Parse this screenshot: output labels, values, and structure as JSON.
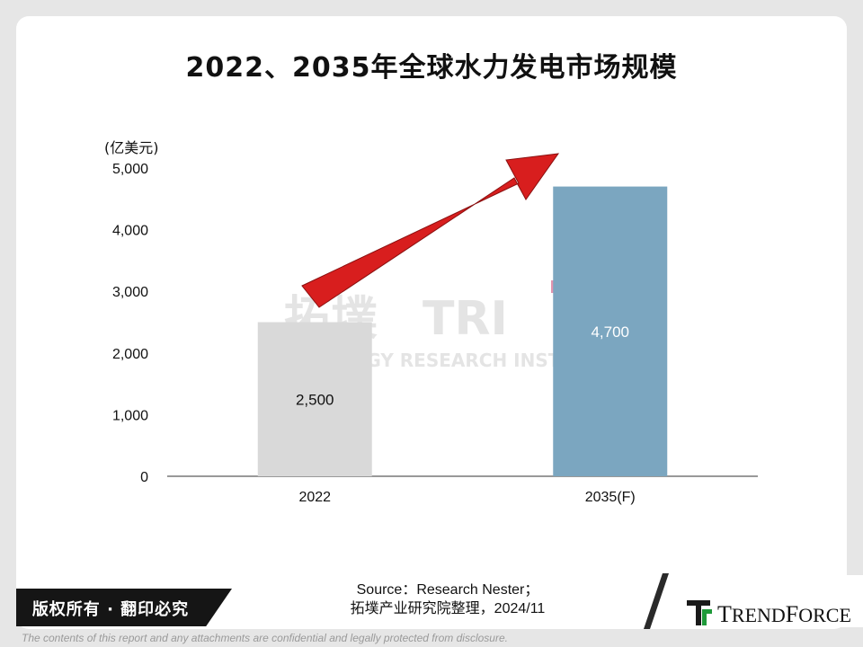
{
  "title": "2022、2035年全球水力发电市场规模",
  "chart_data": {
    "type": "bar",
    "title": "2022、2035年全球水力发电市场规模",
    "unit": "(亿美元)",
    "categories": [
      "2022",
      "2035(F)"
    ],
    "values": [
      2500,
      4700
    ],
    "value_labels": [
      "2,500",
      "4,700"
    ],
    "ylim": [
      0,
      5000
    ],
    "yticks": [
      0,
      1000,
      2000,
      3000,
      4000,
      5000
    ],
    "ytick_labels": [
      "0",
      "1,000",
      "2,000",
      "3,000",
      "4,000",
      "5,000"
    ],
    "bar_colors": [
      "#d9d9d9",
      "#7ba6c0"
    ],
    "label_colors": [
      "#111111",
      "#ffffff"
    ],
    "arrow_color": "#d81e1e",
    "grid": false,
    "legend": "none"
  },
  "watermark": {
    "cn": "拓墣",
    "en": "TOPOLOGY RESEARCH INSTITUTE"
  },
  "source": {
    "line1": "Source：Research Nester；",
    "line2": "拓墣产业研究院整理，2024/11"
  },
  "copyright": "版权所有 · 翻印必究",
  "logo": {
    "text": "TRENDFORCE",
    "icon": "trendforce-logo-icon",
    "color": "#1f9a3a"
  },
  "disclaimer": "The contents of this report and any attachments are confidential and legally protected from disclosure."
}
